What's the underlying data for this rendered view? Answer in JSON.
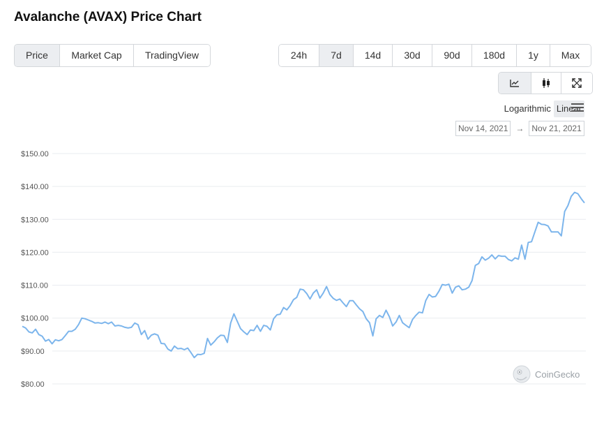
{
  "page": {
    "title": "Avalanche (AVAX) Price Chart"
  },
  "view_tabs": [
    {
      "label": "Price",
      "active": true
    },
    {
      "label": "Market Cap",
      "active": false
    },
    {
      "label": "TradingView",
      "active": false
    }
  ],
  "range_tabs": [
    {
      "label": "24h",
      "active": false
    },
    {
      "label": "7d",
      "active": true
    },
    {
      "label": "14d",
      "active": false
    },
    {
      "label": "30d",
      "active": false
    },
    {
      "label": "90d",
      "active": false
    },
    {
      "label": "180d",
      "active": false
    },
    {
      "label": "1y",
      "active": false
    },
    {
      "label": "Max",
      "active": false
    }
  ],
  "chart_style": [
    {
      "icon": "line-chart-icon",
      "active": true
    },
    {
      "icon": "candlestick-icon",
      "active": false
    },
    {
      "icon": "fullscreen-icon",
      "active": false
    }
  ],
  "scale": {
    "log_label": "Logarithmic",
    "linear_label": "Linear",
    "selected": "Linear",
    "menu_icon": "hamburger-menu-icon"
  },
  "date_range": {
    "from": "Nov 14, 2021",
    "arrow": "→",
    "to": "Nov 21, 2021"
  },
  "watermark": {
    "text": "CoinGecko",
    "icon": "coingecko-logo-icon"
  },
  "colors": {
    "line": "#7cb5ec",
    "grid": "#e9ecef",
    "axis_label": "#555555",
    "active_tab": "#eceef1"
  },
  "chart_data": {
    "type": "line",
    "title": "",
    "xlabel": "",
    "ylabel": "",
    "ylim": [
      80,
      150
    ],
    "xlim": [
      "2021-11-14",
      "2021-11-21"
    ],
    "y_ticks": [
      {
        "value": 150,
        "label": "$150.00"
      },
      {
        "value": 140,
        "label": "$140.00"
      },
      {
        "value": 130,
        "label": "$130.00"
      },
      {
        "value": 120,
        "label": "$120.00"
      },
      {
        "value": 110,
        "label": "$110.00"
      },
      {
        "value": 100,
        "label": "$100.00"
      },
      {
        "value": 90,
        "label": "$90.00"
      },
      {
        "value": 80,
        "label": "$80.00"
      }
    ],
    "grid": true,
    "legend": "none",
    "series": [
      {
        "values": [
          97.5,
          97,
          95.8,
          95.5,
          96.6,
          95,
          94.5,
          93,
          93.5,
          92.2,
          93.4,
          93.1,
          93.5,
          94.7,
          96,
          96,
          96.6,
          98,
          100,
          99.8,
          99.4,
          99,
          98.5,
          98.6,
          98.4,
          98.8,
          98.3,
          98.8,
          97.6,
          97.8,
          97.6,
          97.2,
          97,
          97.2,
          98.5,
          98,
          95,
          96.2,
          93.6,
          94.8,
          95.2,
          94.8,
          92.3,
          92.2,
          90.6,
          90,
          91.5,
          90.7,
          90.8,
          90.4,
          90.9,
          89.5,
          88,
          89,
          88.9,
          89.3,
          93.8,
          91.8,
          92.8,
          94,
          94.8,
          94.7,
          92.6,
          98.5,
          101.3,
          99,
          96.8,
          95.8,
          95,
          96.4,
          96.2,
          97.8,
          96,
          97.8,
          97.5,
          96.4,
          99.8,
          101,
          101.2,
          103.2,
          102.5,
          103.8,
          105.6,
          106.3,
          108.8,
          108.6,
          107.5,
          105.8,
          107.6,
          108.6,
          106.1,
          107.6,
          109.6,
          107.2,
          106,
          105.4,
          105.8,
          104.6,
          103.5,
          105.3,
          105.3,
          104,
          102.8,
          102,
          99.8,
          98.6,
          94.6,
          99.8,
          100.8,
          100.2,
          102.4,
          100.4,
          97.6,
          98.8,
          100.8,
          98.6,
          97.8,
          97.1,
          99.6,
          100.8,
          101.8,
          101.6,
          105.3,
          107.2,
          106.4,
          106.6,
          108.2,
          110.2,
          110,
          110.3,
          107.6,
          109.4,
          109.8,
          108.6,
          108.8,
          109.4,
          111.4,
          116,
          116.6,
          118.6,
          117.6,
          118.2,
          119.2,
          118,
          119,
          118.8,
          118.8,
          117.8,
          117.4,
          118.3,
          117.9,
          122.2,
          117.9,
          123,
          123.2,
          126.2,
          129.1,
          128.5,
          128.4,
          128,
          126.2,
          126.2,
          126.2,
          125,
          132.4,
          134.2,
          137,
          138.2,
          137.8,
          136.3,
          135
        ]
      }
    ]
  }
}
